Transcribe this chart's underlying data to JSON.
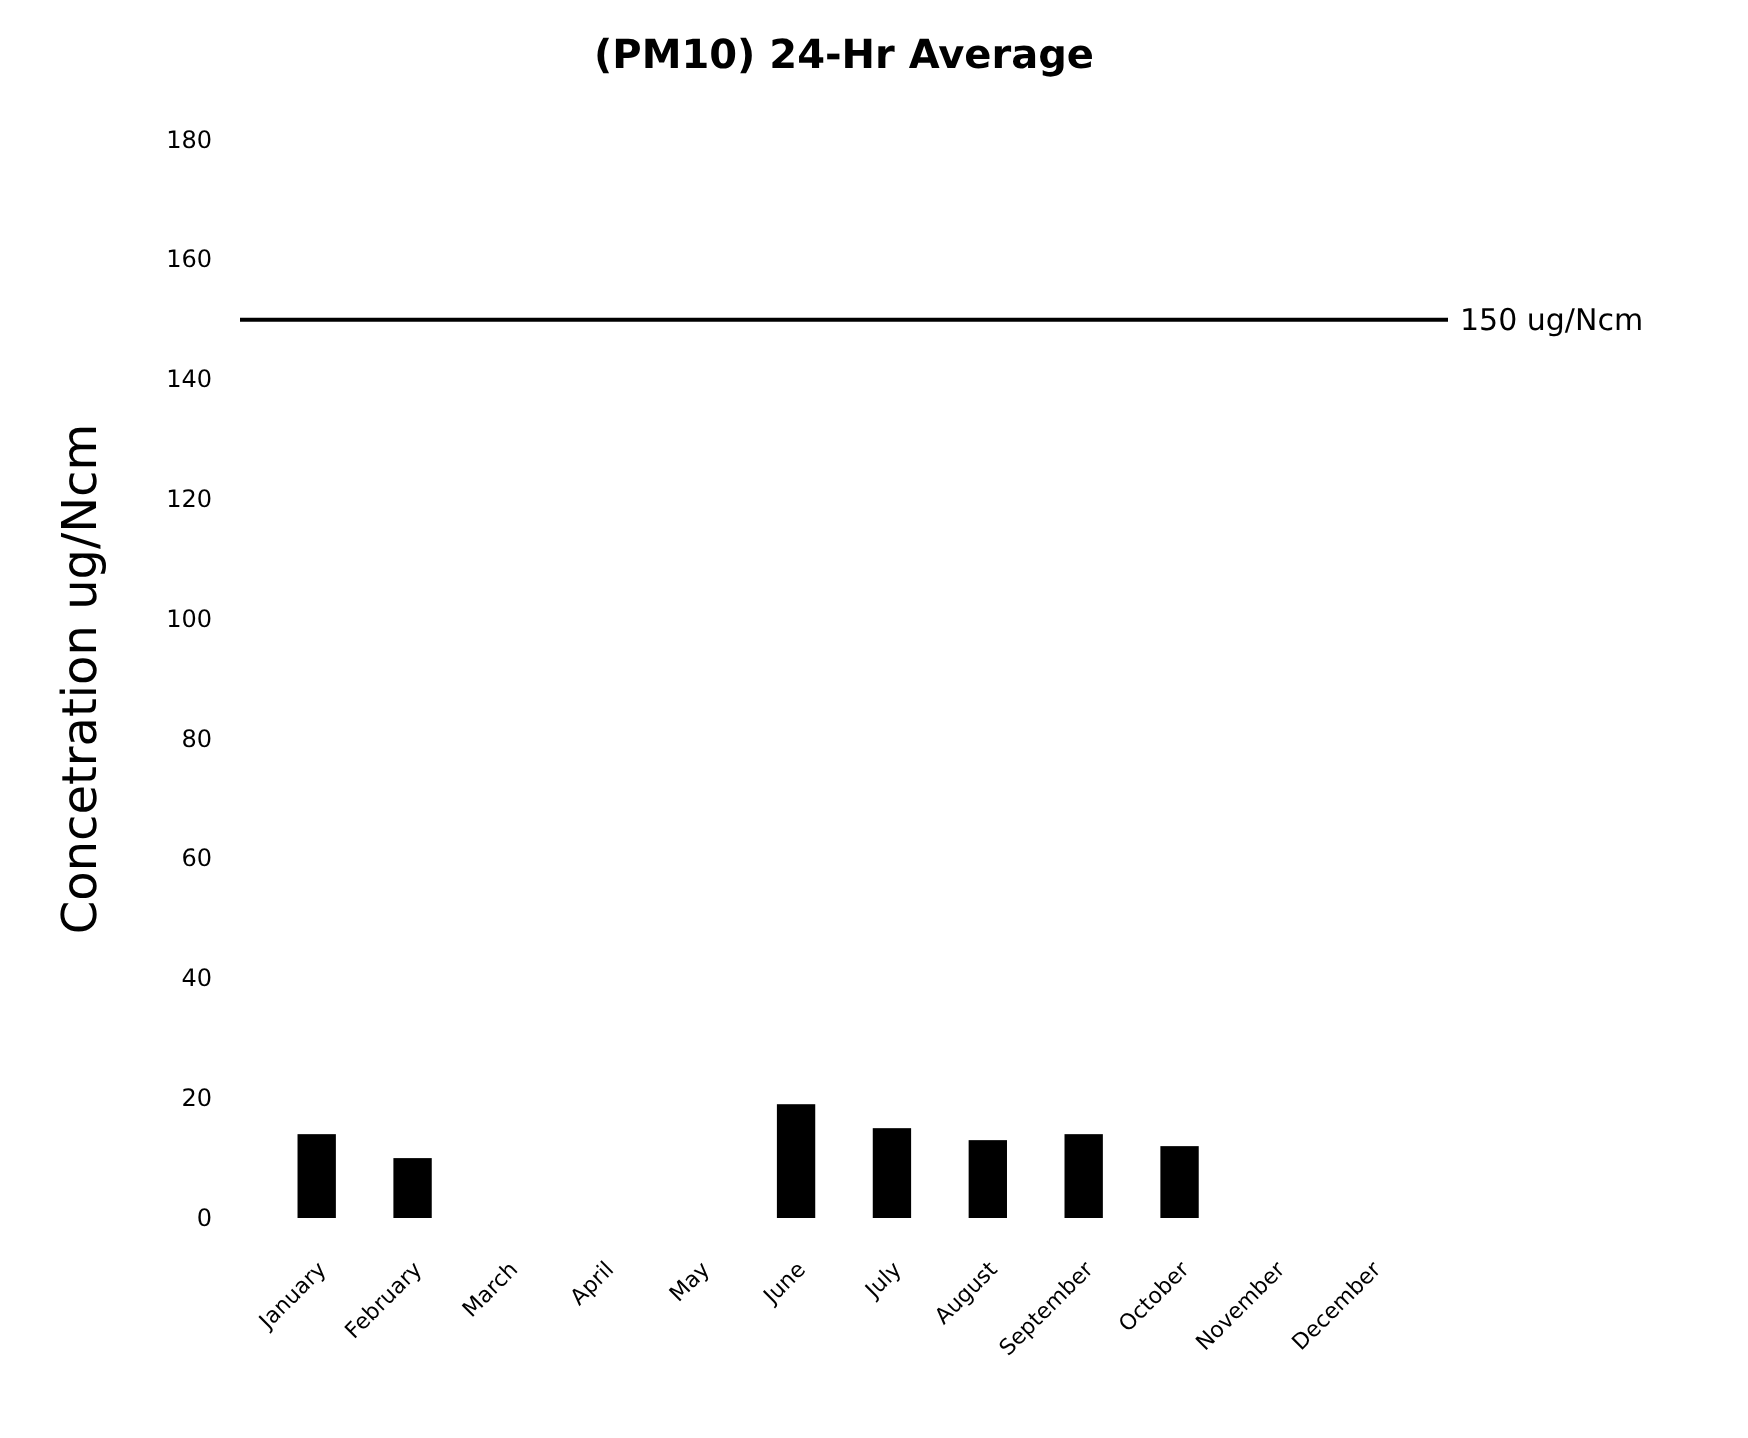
{
  "chart_data": {
    "type": "bar",
    "title": "(PM10) 24-Hr Average",
    "ylabel": "Concetration ug/Ncm",
    "categories": [
      "January",
      "February",
      "March",
      "April",
      "May",
      "June",
      "July",
      "August",
      "September",
      "October",
      "November",
      "December"
    ],
    "values": [
      14,
      10,
      null,
      null,
      null,
      19,
      15,
      13,
      14,
      12,
      null,
      null
    ],
    "color": "#000000",
    "ylim": [
      0,
      180
    ],
    "yticks": [
      0,
      20,
      40,
      60,
      80,
      100,
      120,
      140,
      160,
      180
    ],
    "grid": false,
    "ref_lines": [
      {
        "axis": "y",
        "value": 150,
        "label": "150 ug/Ncm",
        "color": "#000000"
      }
    ]
  }
}
